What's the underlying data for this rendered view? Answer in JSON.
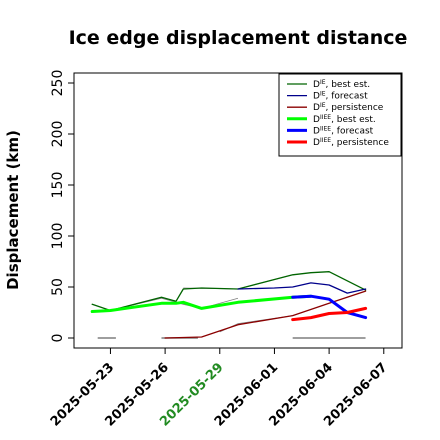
{
  "chart_data": {
    "type": "line",
    "title": "Ice edge displacement distance",
    "ylabel": "Displacement (km)",
    "xlabel": "",
    "ylim": [
      0,
      260
    ],
    "xlim": [
      "2025-05-21",
      "2025-06-08"
    ],
    "yticks": [
      0,
      50,
      100,
      150,
      200,
      250
    ],
    "xticks": [
      {
        "date": "2025-05-23",
        "label": "2025-05-23",
        "color": "#000000"
      },
      {
        "date": "2025-05-26",
        "label": "2025-05-26",
        "color": "#000000"
      },
      {
        "date": "2025-05-29",
        "label": "2025-05-29",
        "color": "#228B22"
      },
      {
        "date": "2025-06-01",
        "label": "2025-06-01",
        "color": "#000000"
      },
      {
        "date": "2025-06-04",
        "label": "2025-06-04",
        "color": "#000000"
      },
      {
        "date": "2025-06-07",
        "label": "2025-06-07",
        "color": "#000000"
      }
    ],
    "legend_position": "top-right",
    "grid": false,
    "series": [
      {
        "name_main": "D",
        "name_sup": "IE",
        "name_rest": ", best est.",
        "color": "#006400",
        "width": 1.3,
        "points": [
          [
            "2025-05-22",
            33
          ],
          [
            "2025-05-23",
            27
          ],
          [
            "2025-05-25.8",
            40
          ],
          [
            "2025-05-26.6",
            36
          ],
          [
            "2025-05-27",
            48
          ],
          [
            "2025-05-28",
            49
          ],
          [
            "2025-05-30",
            48
          ],
          [
            "2025-06-02",
            62
          ],
          [
            "2025-06-03",
            64
          ],
          [
            "2025-06-04",
            65
          ],
          [
            "2025-06-06",
            47
          ]
        ]
      },
      {
        "name_main": "D",
        "name_sup": "IE",
        "name_rest": ", forecast",
        "color": "#00008B",
        "width": 1.3,
        "points": [
          [
            "2025-05-30",
            48
          ],
          [
            "2025-06-01",
            49
          ],
          [
            "2025-06-02",
            50
          ],
          [
            "2025-06-03",
            54
          ],
          [
            "2025-06-04",
            52
          ],
          [
            "2025-06-05",
            44
          ],
          [
            "2025-06-06",
            48
          ]
        ]
      },
      {
        "name_main": "D",
        "name_sup": "IE",
        "name_rest": ", persistence",
        "color": "#8B0000",
        "width": 1.3,
        "points": [
          [
            "2025-05-26",
            0
          ],
          [
            "2025-05-28",
            1
          ],
          [
            "2025-05-30",
            13
          ],
          [
            "2025-06-02",
            22
          ],
          [
            "2025-06-04",
            34
          ],
          [
            "2025-06-06",
            46
          ]
        ]
      },
      {
        "name_main": "D",
        "name_sup": "IIEE",
        "name_rest": ", best est.",
        "color": "#00FF00",
        "width": 3,
        "points": [
          [
            "2025-05-22",
            26
          ],
          [
            "2025-05-23",
            27
          ],
          [
            "2025-05-25.8",
            34
          ],
          [
            "2025-05-26.6",
            34
          ],
          [
            "2025-05-27",
            35
          ],
          [
            "2025-05-28",
            29
          ],
          [
            "2025-05-30",
            35
          ],
          [
            "2025-06-02",
            40
          ],
          [
            "2025-06-03",
            41
          ]
        ]
      },
      {
        "name_main": "D",
        "name_sup": "IIEE",
        "name_rest": ", forecast",
        "color": "#0000FF",
        "width": 3,
        "points": [
          [
            "2025-06-02",
            40
          ],
          [
            "2025-06-03",
            41
          ],
          [
            "2025-06-04",
            38
          ],
          [
            "2025-06-05",
            25
          ],
          [
            "2025-06-06",
            20
          ]
        ]
      },
      {
        "name_main": "D",
        "name_sup": "IIEE",
        "name_rest": ", persistence",
        "color": "#FF0000",
        "width": 3,
        "points": [
          [
            "2025-06-02",
            18
          ],
          [
            "2025-06-03",
            20
          ],
          [
            "2025-06-04",
            24
          ],
          [
            "2025-06-05",
            25
          ],
          [
            "2025-06-06",
            29
          ]
        ]
      }
    ],
    "thin_lines": [
      {
        "color": "#7f7f7f",
        "width": 0.8,
        "points": [
          [
            "2025-05-23",
            27
          ],
          [
            "2025-05-25.8",
            39
          ],
          [
            "2025-05-26.6",
            35
          ],
          [
            "2025-05-27",
            33
          ],
          [
            "2025-05-28",
            29
          ],
          [
            "2025-05-30",
            39
          ]
        ]
      },
      {
        "color": "#7f7f7f",
        "width": 0.8,
        "points": [
          [
            "2025-05-27",
            49
          ],
          [
            "2025-05-30",
            48
          ],
          [
            "2025-06-02",
            62
          ]
        ]
      },
      {
        "color": "#7f7f7f",
        "width": 0.8,
        "points": [
          [
            "2025-05-29",
            6
          ],
          [
            "2025-05-30",
            14
          ],
          [
            "2025-06-02",
            22
          ]
        ]
      }
    ],
    "zero_segments": [
      {
        "from": "2025-05-22.3",
        "to": "2025-05-23.3",
        "value": 0
      },
      {
        "from": "2025-05-25.8",
        "to": "2025-05-27.8",
        "value": 0
      },
      {
        "from": "2025-06-02",
        "to": "2025-06-06",
        "value": 0
      }
    ]
  }
}
